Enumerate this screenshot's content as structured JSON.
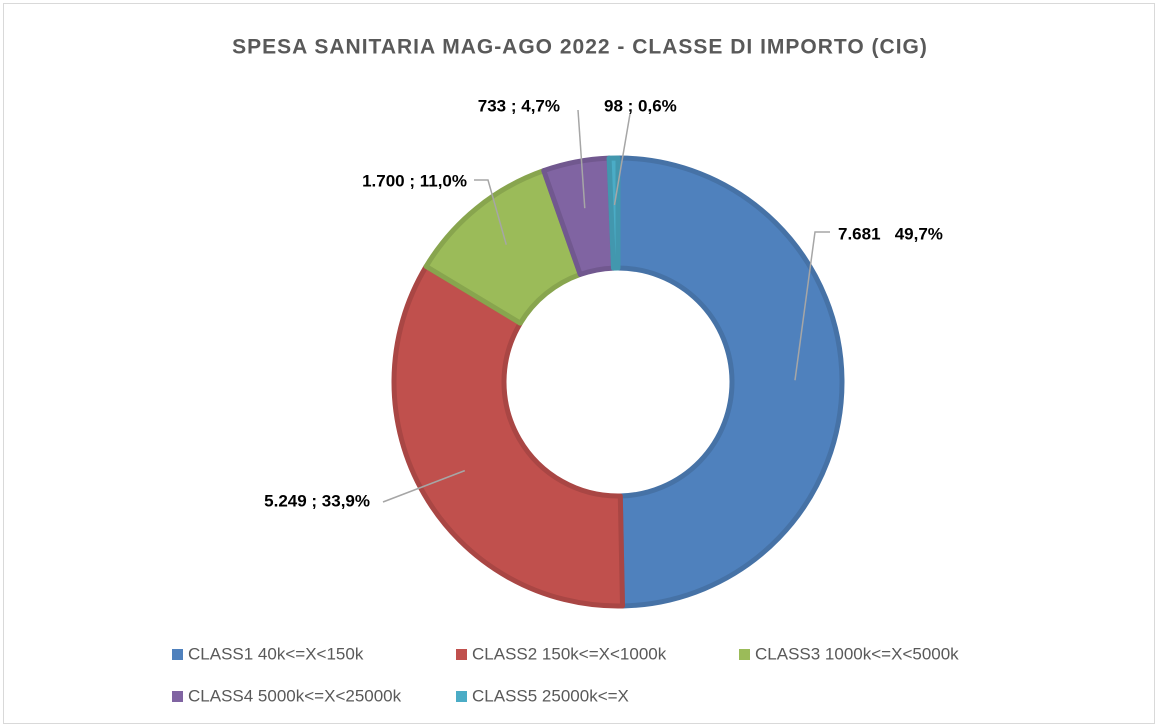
{
  "chart_data": {
    "type": "donut",
    "title": "SPESA SANITARIA MAG-AGO 2022 - CLASSE DI IMPORTO (CIG)",
    "categories": [
      "CLASS1 40k<=X<150k",
      "CLASS2 150k<=X<1000k",
      "CLASS3 1000k<=X<5000k",
      "CLASS4 5000k<=X<25000k",
      "CLASS5 25000k<=X"
    ],
    "values": [
      7681,
      5249,
      1700,
      733,
      98
    ],
    "value_labels": [
      "7.681   49,7%",
      "5.249 ; 33,9%",
      "1.700 ; 11,0%",
      "733 ; 4,7%",
      "98 ; 0,6%"
    ],
    "colors": [
      "#4f81bd",
      "#c0504d",
      "#9bbb59",
      "#8064a2",
      "#4bacc6"
    ],
    "legend": "bottom"
  }
}
